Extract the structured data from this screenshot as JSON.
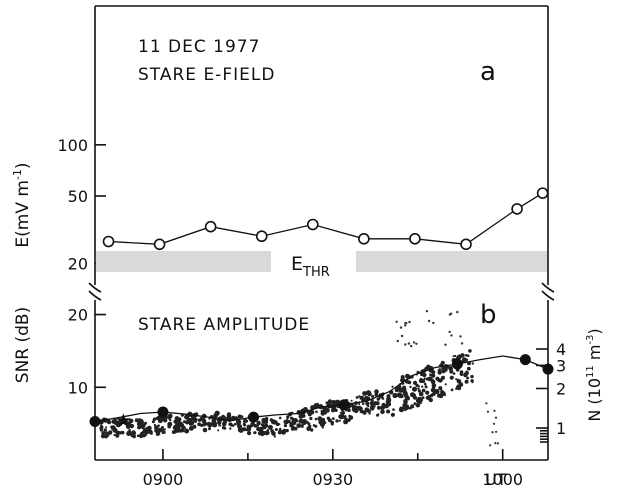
{
  "chart_data": [
    {
      "type": "line",
      "panel_label": "a",
      "title_lines": [
        "11 DEC 1977",
        "STARE E-FIELD"
      ],
      "ylabel_parts": {
        "base": "E(mV m",
        "exp": "-1",
        "close": ")"
      },
      "y_scale": "log",
      "ylim": [
        14,
        140
      ],
      "yticks": [
        20,
        50,
        100
      ],
      "xlim": [
        0,
        100
      ],
      "threshold_label": {
        "base": "E",
        "sub": "THR"
      },
      "series": [
        {
          "marker": "open-circle",
          "x": [
            2,
            14,
            26,
            38,
            50,
            62,
            74,
            86,
            98,
            104
          ],
          "y": [
            27,
            26,
            33,
            29,
            34,
            28,
            28,
            26,
            42,
            52
          ]
        }
      ]
    },
    {
      "type": "scatter",
      "panel_label": "b",
      "title": "STARE AMPLITUDE",
      "ylabel_left": "SNR (dB)",
      "ylim_left": [
        0,
        22
      ],
      "yticks_left": [
        10,
        20
      ],
      "ylabel_right_parts": {
        "base": "N (10",
        "exp": "11",
        "mid": " m",
        "exp2": "-3",
        "close": ")"
      },
      "yticks_right": [
        "4",
        "3",
        "2",
        "1"
      ],
      "xlabel_unit": "UT",
      "xticks": [
        "0900",
        "0930",
        "1000"
      ],
      "xlim_minutes": [
        -12,
        68
      ],
      "xtick_minutes": [
        0,
        30,
        60
      ],
      "density_series": {
        "marker": "filled-circle",
        "x_minutes": [
          -12,
          -8,
          -4,
          0,
          4,
          8,
          12,
          16,
          20,
          24,
          28,
          32,
          36,
          40,
          44,
          48,
          52,
          56,
          60,
          64,
          68
        ],
        "snr_db": [
          5.3,
          5.8,
          6.4,
          6.6,
          6.3,
          5.9,
          5.4,
          5.9,
          6.2,
          6.4,
          7.3,
          7.6,
          8.1,
          9.4,
          11.6,
          12.7,
          13.2,
          13.8,
          14.3,
          13.8,
          12.5
        ]
      },
      "star_marker": {
        "x_minutes": -7,
        "snr_db": 5.4
      }
    }
  ]
}
